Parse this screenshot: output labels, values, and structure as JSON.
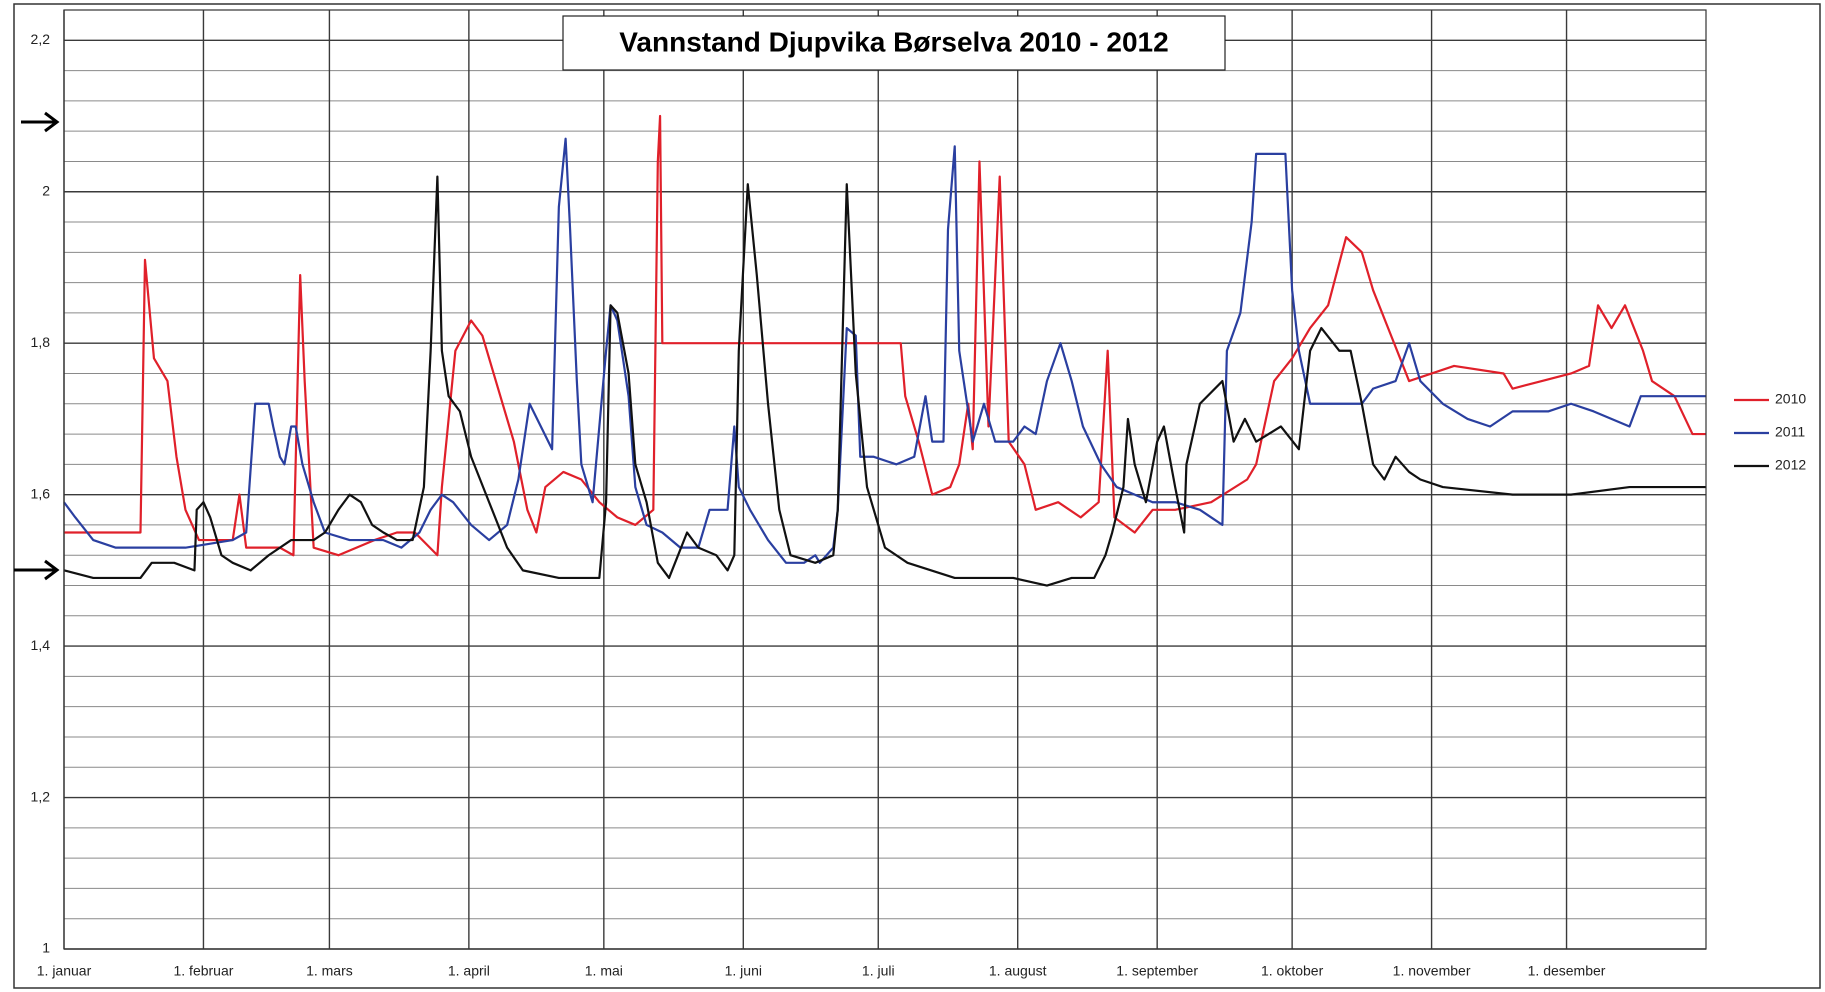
{
  "chart_data": {
    "type": "line",
    "title": "Vannstand Djupvika Børselva 2010 - 2012",
    "xlim": [
      0,
      365
    ],
    "xticks": [
      {
        "value": 0,
        "label": "1. januar"
      },
      {
        "value": 31,
        "label": "1. februar"
      },
      {
        "value": 59,
        "label": "1. mars"
      },
      {
        "value": 90,
        "label": "1. april"
      },
      {
        "value": 120,
        "label": "1. mai"
      },
      {
        "value": 151,
        "label": "1. juni"
      },
      {
        "value": 181,
        "label": "1. juli"
      },
      {
        "value": 212,
        "label": "1. august"
      },
      {
        "value": 243,
        "label": "1. september"
      },
      {
        "value": 273,
        "label": "1. oktober"
      },
      {
        "value": 304,
        "label": "1. november"
      },
      {
        "value": 334,
        "label": "1. desember"
      }
    ],
    "ylim": [
      1,
      2.24
    ],
    "yticks": [
      1,
      {
        "value": 1.2,
        "label": "1,2"
      },
      {
        "value": 1.4,
        "label": "1,4"
      },
      {
        "value": 1.6,
        "label": "1,6"
      },
      {
        "value": 1.8,
        "label": "1,8"
      },
      2,
      {
        "value": 2.2,
        "label": "2,2"
      }
    ],
    "y_minor_ticks": [
      1.04,
      1.08,
      1.12,
      1.16,
      1.24,
      1.28,
      1.32,
      1.36,
      1.44,
      1.48,
      1.52,
      1.56,
      1.64,
      1.68,
      1.72,
      1.76,
      1.84,
      1.88,
      1.92,
      1.96,
      2.04,
      2.08,
      2.12,
      2.16
    ],
    "grid": true,
    "legend": "right",
    "series": [
      {
        "name": "2010",
        "color": "#e0202a",
        "x": [
          0,
          17,
          18,
          20,
          23,
          25,
          27,
          30,
          37.5,
          39,
          40.5,
          48,
          51,
          52.5,
          53.5,
          55.5,
          61,
          69,
          74,
          78,
          83,
          84,
          87,
          90.5,
          93,
          96,
          100,
          103,
          105,
          107,
          111,
          115,
          119,
          123,
          127,
          131,
          132,
          132.5,
          133,
          186,
          187,
          190,
          193,
          197,
          199,
          201,
          202,
          203.5,
          205.5,
          208,
          210,
          213.5,
          216,
          221,
          226,
          230,
          232,
          233.5,
          238,
          242,
          247,
          255,
          263,
          265,
          269,
          273,
          277,
          281,
          285,
          288.5,
          291,
          295,
          299,
          309,
          320,
          322,
          335,
          339,
          341,
          344,
          347,
          351,
          353,
          358,
          362,
          365
        ],
        "values": [
          1.55,
          1.55,
          1.91,
          1.78,
          1.75,
          1.65,
          1.58,
          1.54,
          1.54,
          1.6,
          1.53,
          1.53,
          1.52,
          1.89,
          1.75,
          1.53,
          1.52,
          1.54,
          1.55,
          1.55,
          1.52,
          1.61,
          1.79,
          1.83,
          1.81,
          1.75,
          1.67,
          1.58,
          1.55,
          1.61,
          1.63,
          1.62,
          1.59,
          1.57,
          1.56,
          1.58,
          2.04,
          2.1,
          1.8,
          1.8,
          1.73,
          1.67,
          1.6,
          1.61,
          1.64,
          1.72,
          1.66,
          2.04,
          1.69,
          2.02,
          1.67,
          1.64,
          1.58,
          1.59,
          1.57,
          1.59,
          1.79,
          1.57,
          1.55,
          1.58,
          1.58,
          1.59,
          1.62,
          1.64,
          1.75,
          1.78,
          1.82,
          1.85,
          1.94,
          1.92,
          1.87,
          1.81,
          1.75,
          1.77,
          1.76,
          1.74,
          1.76,
          1.77,
          1.85,
          1.82,
          1.85,
          1.79,
          1.75,
          1.73,
          1.68,
          1.68
        ]
      },
      {
        "name": "2011",
        "color": "#2a3fa0",
        "x": [
          0,
          2.5,
          6.5,
          11.5,
          19.5,
          27,
          37.5,
          40.5,
          42.5,
          45.5,
          46.5,
          48,
          49,
          50.5,
          51.5,
          53,
          55.5,
          58,
          63.5,
          71,
          75,
          79,
          81.5,
          84,
          86.5,
          90.5,
          94.5,
          98.5,
          101,
          103.5,
          106,
          108.5,
          110,
          111.5,
          112.5,
          114,
          115,
          117.5,
          120.5,
          121.5,
          123,
          125.5,
          127,
          129.5,
          133,
          137,
          141,
          143.5,
          147.5,
          149,
          150,
          152.5,
          156.5,
          160.5,
          164.5,
          167,
          168,
          171,
          172,
          174,
          176,
          177,
          180,
          185,
          189,
          191.5,
          193,
          195.5,
          196.5,
          198,
          199,
          202,
          204.5,
          207,
          211,
          213.5,
          216,
          218.5,
          221.5,
          224,
          226.5,
          230.5,
          234,
          238,
          242,
          247,
          252.5,
          257.5,
          258.5,
          261.5,
          264,
          265,
          271.5,
          273,
          274.5,
          277,
          286,
          288.5,
          291,
          296,
          299,
          301.5,
          306.5,
          312,
          317,
          322,
          330,
          335,
          340,
          348,
          350.5,
          365
        ],
        "values": [
          1.59,
          1.57,
          1.54,
          1.53,
          1.53,
          1.53,
          1.54,
          1.55,
          1.72,
          1.72,
          1.69,
          1.65,
          1.64,
          1.69,
          1.69,
          1.64,
          1.59,
          1.55,
          1.54,
          1.54,
          1.53,
          1.55,
          1.58,
          1.6,
          1.59,
          1.56,
          1.54,
          1.56,
          1.62,
          1.72,
          1.69,
          1.66,
          1.98,
          2.07,
          1.95,
          1.75,
          1.64,
          1.59,
          1.79,
          1.85,
          1.83,
          1.73,
          1.61,
          1.56,
          1.55,
          1.53,
          1.53,
          1.58,
          1.58,
          1.69,
          1.61,
          1.58,
          1.54,
          1.51,
          1.51,
          1.52,
          1.51,
          1.53,
          1.58,
          1.82,
          1.81,
          1.65,
          1.65,
          1.64,
          1.65,
          1.73,
          1.67,
          1.67,
          1.95,
          2.06,
          1.79,
          1.67,
          1.72,
          1.67,
          1.67,
          1.69,
          1.68,
          1.75,
          1.8,
          1.75,
          1.69,
          1.64,
          1.61,
          1.6,
          1.59,
          1.59,
          1.58,
          1.56,
          1.79,
          1.84,
          1.96,
          2.05,
          2.05,
          1.87,
          1.79,
          1.72,
          1.72,
          1.72,
          1.74,
          1.75,
          1.8,
          1.75,
          1.72,
          1.7,
          1.69,
          1.71,
          1.71,
          1.72,
          1.71,
          1.69,
          1.73,
          1.73
        ]
      },
      {
        "name": "2012",
        "color": "#111111",
        "x": [
          0,
          6.5,
          11.5,
          17,
          19.5,
          24.5,
          29,
          29.5,
          31,
          32.5,
          35,
          37.5,
          41.5,
          45.5,
          50.5,
          55.5,
          58,
          61,
          63.5,
          66,
          68.5,
          71,
          74,
          77.5,
          80,
          81.5,
          83,
          84,
          85.5,
          88,
          90.5,
          94.5,
          98.5,
          102,
          110,
          119,
          120.5,
          121.5,
          123,
          125.5,
          127,
          129.5,
          132,
          134.5,
          138.5,
          141,
          145,
          147.5,
          149,
          150,
          152,
          154,
          156.5,
          159,
          161.5,
          167,
          171,
          172,
          174,
          176,
          178.5,
          182.5,
          187.5,
          198,
          211,
          218.5,
          224,
          229,
          231.5,
          233,
          235.5,
          236.5,
          238,
          240.5,
          243,
          244.5,
          247,
          249,
          249.5,
          252.5,
          257.5,
          260,
          262.5,
          265,
          270.5,
          274.5,
          277,
          279.5,
          283.5,
          286,
          288.5,
          291,
          293.5,
          296,
          299,
          301.5,
          306.5,
          322,
          335,
          348,
          365
        ],
        "values": [
          1.5,
          1.49,
          1.49,
          1.49,
          1.51,
          1.51,
          1.5,
          1.58,
          1.59,
          1.57,
          1.52,
          1.51,
          1.5,
          1.52,
          1.54,
          1.54,
          1.55,
          1.58,
          1.6,
          1.59,
          1.56,
          1.55,
          1.54,
          1.54,
          1.61,
          1.79,
          2.02,
          1.79,
          1.73,
          1.71,
          1.65,
          1.59,
          1.53,
          1.5,
          1.49,
          1.49,
          1.59,
          1.85,
          1.84,
          1.76,
          1.64,
          1.59,
          1.51,
          1.49,
          1.55,
          1.53,
          1.52,
          1.5,
          1.52,
          1.79,
          2.01,
          1.89,
          1.72,
          1.58,
          1.52,
          1.51,
          1.52,
          1.58,
          2.01,
          1.76,
          1.61,
          1.53,
          1.51,
          1.49,
          1.49,
          1.48,
          1.49,
          1.49,
          1.52,
          1.55,
          1.61,
          1.7,
          1.64,
          1.59,
          1.67,
          1.69,
          1.61,
          1.55,
          1.64,
          1.72,
          1.75,
          1.67,
          1.7,
          1.67,
          1.69,
          1.66,
          1.79,
          1.82,
          1.79,
          1.79,
          1.72,
          1.64,
          1.62,
          1.65,
          1.63,
          1.62,
          1.61,
          1.6,
          1.6,
          1.61,
          1.61
        ]
      }
    ]
  }
}
